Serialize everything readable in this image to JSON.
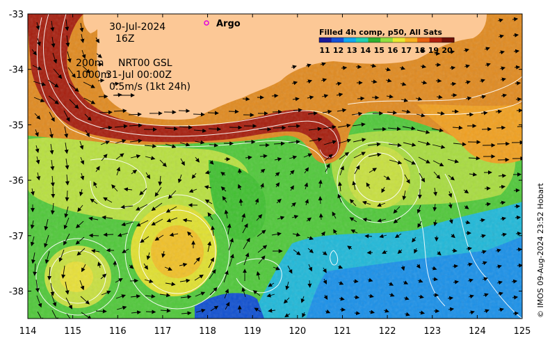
{
  "annotations": {
    "date": "30-Jul-2024",
    "hour": "16Z",
    "depth_200": "200m",
    "product": "NRT00 GSL",
    "depth_1000": "1000m",
    "valid_time": "31-Jul 00:00Z",
    "vector_scale": "0.5m/s (1kt 24h)"
  },
  "legend": {
    "argo_label": "Argo",
    "argo_color": "#e000e0",
    "colorbar_title": "Filled 4h comp, p50, All Sats",
    "colorbar_ticks": [
      "11",
      "12",
      "13",
      "14",
      "15",
      "16",
      "17",
      "18",
      "19",
      "20"
    ],
    "colorbar_colors": [
      "#1a1a9a",
      "#1550d8",
      "#10a8f0",
      "#20d0b0",
      "#30b030",
      "#90e040",
      "#e8e830",
      "#f8b020",
      "#e86010",
      "#b02010",
      "#701008"
    ]
  },
  "credit": "© IMOS 09-Aug-2024 23:52 Hobart",
  "axes": {
    "x_ticks": [
      "114",
      "115",
      "116",
      "117",
      "118",
      "119",
      "120",
      "121",
      "122",
      "123",
      "124",
      "125"
    ],
    "y_ticks": [
      "-33",
      "-34",
      "-35",
      "-36",
      "-37",
      "-38"
    ]
  },
  "colors": {
    "land": "#fcc896",
    "coastal_warm": "#d86a10",
    "current_core": "#a01c10",
    "offshore_green": "#40c030",
    "yellow_green": "#c8e040",
    "cool_blue": "#20a0f0"
  }
}
